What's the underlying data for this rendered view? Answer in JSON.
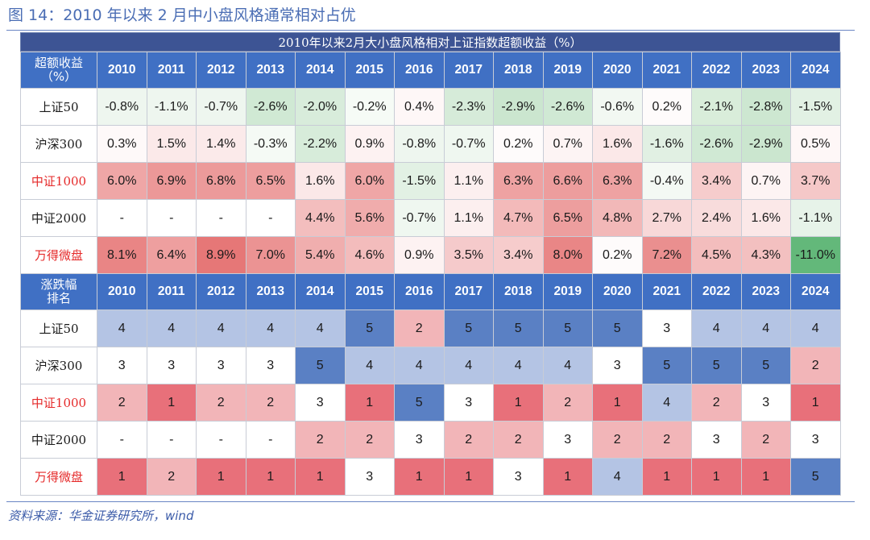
{
  "figure_title": "图 14：2010 年以来 2 月中小盘风格通常相对占优",
  "table_title": "2010年以来2月大小盘风格相对上证指数超额收益（%）",
  "years": [
    "2010",
    "2011",
    "2012",
    "2013",
    "2014",
    "2015",
    "2016",
    "2017",
    "2018",
    "2019",
    "2020",
    "2021",
    "2022",
    "2023",
    "2024"
  ],
  "excess_section": {
    "header_label": "超额收益\n（%）",
    "rows": [
      {
        "label": "上证50",
        "red": false,
        "values": [
          "-0.8%",
          "-1.1%",
          "-0.7%",
          "-2.6%",
          "-2.0%",
          "-0.2%",
          "0.4%",
          "-2.3%",
          "-2.9%",
          "-2.6%",
          "-0.6%",
          "0.2%",
          "-2.1%",
          "-2.8%",
          "-1.5%"
        ],
        "colors": [
          "#eef6ef",
          "#eef6ef",
          "#eef6ef",
          "#d0e9d4",
          "#d8ecdb",
          "#f6fbf6",
          "#fef7f7",
          "#d6ebd9",
          "#cbe6cf",
          "#d0e9d4",
          "#f2f8f2",
          "#fefbfb",
          "#d9edda",
          "#cde7d1",
          "#e2f1e4"
        ]
      },
      {
        "label": "沪深300",
        "red": false,
        "values": [
          "0.3%",
          "1.5%",
          "1.4%",
          "-0.3%",
          "-2.2%",
          "0.9%",
          "-0.8%",
          "-0.7%",
          "0.2%",
          "0.7%",
          "1.6%",
          "-1.6%",
          "-2.6%",
          "-2.9%",
          "0.5%"
        ],
        "colors": [
          "#fef9f9",
          "#fbe9e9",
          "#fbeaea",
          "#f5faf5",
          "#d7ecda",
          "#fdf2f2",
          "#eef6ef",
          "#eff7f0",
          "#fefbfb",
          "#fdf4f4",
          "#fbe8e8",
          "#e1f0e3",
          "#d0e9d4",
          "#cbe6cf",
          "#fef7f7"
        ]
      },
      {
        "label": "中证1000",
        "red": true,
        "values": [
          "6.0%",
          "6.9%",
          "6.8%",
          "6.5%",
          "1.6%",
          "6.0%",
          "-1.5%",
          "1.1%",
          "6.3%",
          "6.6%",
          "6.3%",
          "-0.4%",
          "3.4%",
          "0.7%",
          "3.7%"
        ],
        "colors": [
          "#efa6a6",
          "#ec9898",
          "#ec9a9a",
          "#ed9e9e",
          "#fbe8e8",
          "#efa6a6",
          "#e2f1e4",
          "#fcefef",
          "#eea2a2",
          "#ed9d9d",
          "#eea2a2",
          "#f4f9f4",
          "#f6cccc",
          "#fdf4f4",
          "#f5c8c8"
        ]
      },
      {
        "label": "中证2000",
        "red": false,
        "values": [
          "-",
          "-",
          "-",
          "-",
          "4.4%",
          "5.6%",
          "-0.7%",
          "1.1%",
          "4.7%",
          "6.5%",
          "4.8%",
          "2.7%",
          "2.4%",
          "1.6%",
          "-1.1%"
        ],
        "colors": [
          "#ffffff",
          "#ffffff",
          "#ffffff",
          "#ffffff",
          "#f3bebe",
          "#f0acac",
          "#eff7f0",
          "#fcefef",
          "#f3baba",
          "#ed9e9e",
          "#f2b8b8",
          "#f8d8d8",
          "#f8dcdc",
          "#fbe8e8",
          "#e7f3e9"
        ]
      },
      {
        "label": "万得微盘",
        "red": true,
        "values": [
          "8.1%",
          "6.4%",
          "8.9%",
          "7.0%",
          "5.4%",
          "4.6%",
          "0.9%",
          "3.5%",
          "3.4%",
          "8.0%",
          "0.2%",
          "7.2%",
          "4.5%",
          "4.3%",
          "-11.0%"
        ],
        "colors": [
          "#e98585",
          "#ee9f9f",
          "#e67777",
          "#eb9393",
          "#f0aeae",
          "#f3bcbc",
          "#fdf2f2",
          "#f5cacb",
          "#f6cccc",
          "#e98686",
          "#fefbfb",
          "#ea8f8f",
          "#f3bdbd",
          "#f3c0c0",
          "#63b87a"
        ]
      }
    ]
  },
  "rank_section": {
    "header_label": "涨跌幅\n排名",
    "rows": [
      {
        "label": "上证50",
        "red": false,
        "values": [
          "4",
          "4",
          "4",
          "4",
          "4",
          "5",
          "2",
          "5",
          "5",
          "5",
          "5",
          "3",
          "4",
          "4",
          "4"
        ]
      },
      {
        "label": "沪深300",
        "red": false,
        "values": [
          "3",
          "3",
          "3",
          "3",
          "5",
          "4",
          "4",
          "4",
          "4",
          "4",
          "3",
          "5",
          "5",
          "5",
          "2"
        ]
      },
      {
        "label": "中证1000",
        "red": true,
        "values": [
          "2",
          "1",
          "2",
          "2",
          "3",
          "1",
          "5",
          "3",
          "1",
          "2",
          "1",
          "4",
          "2",
          "3",
          "1"
        ]
      },
      {
        "label": "中证2000",
        "red": false,
        "values": [
          "-",
          "-",
          "-",
          "-",
          "2",
          "2",
          "3",
          "2",
          "2",
          "3",
          "2",
          "2",
          "3",
          "2",
          "3"
        ]
      },
      {
        "label": "万得微盘",
        "red": true,
        "values": [
          "1",
          "2",
          "1",
          "1",
          "1",
          "3",
          "1",
          "1",
          "3",
          "1",
          "4",
          "1",
          "1",
          "1",
          "5"
        ]
      }
    ],
    "rank_colors": {
      "1": "#e8707a",
      "2": "#f2b5b8",
      "3": "#ffffff",
      "4": "#b4c4e4",
      "5": "#5a80c4",
      "-": "#ffffff"
    }
  },
  "source": "资料来源：华金证券研究所，wind"
}
